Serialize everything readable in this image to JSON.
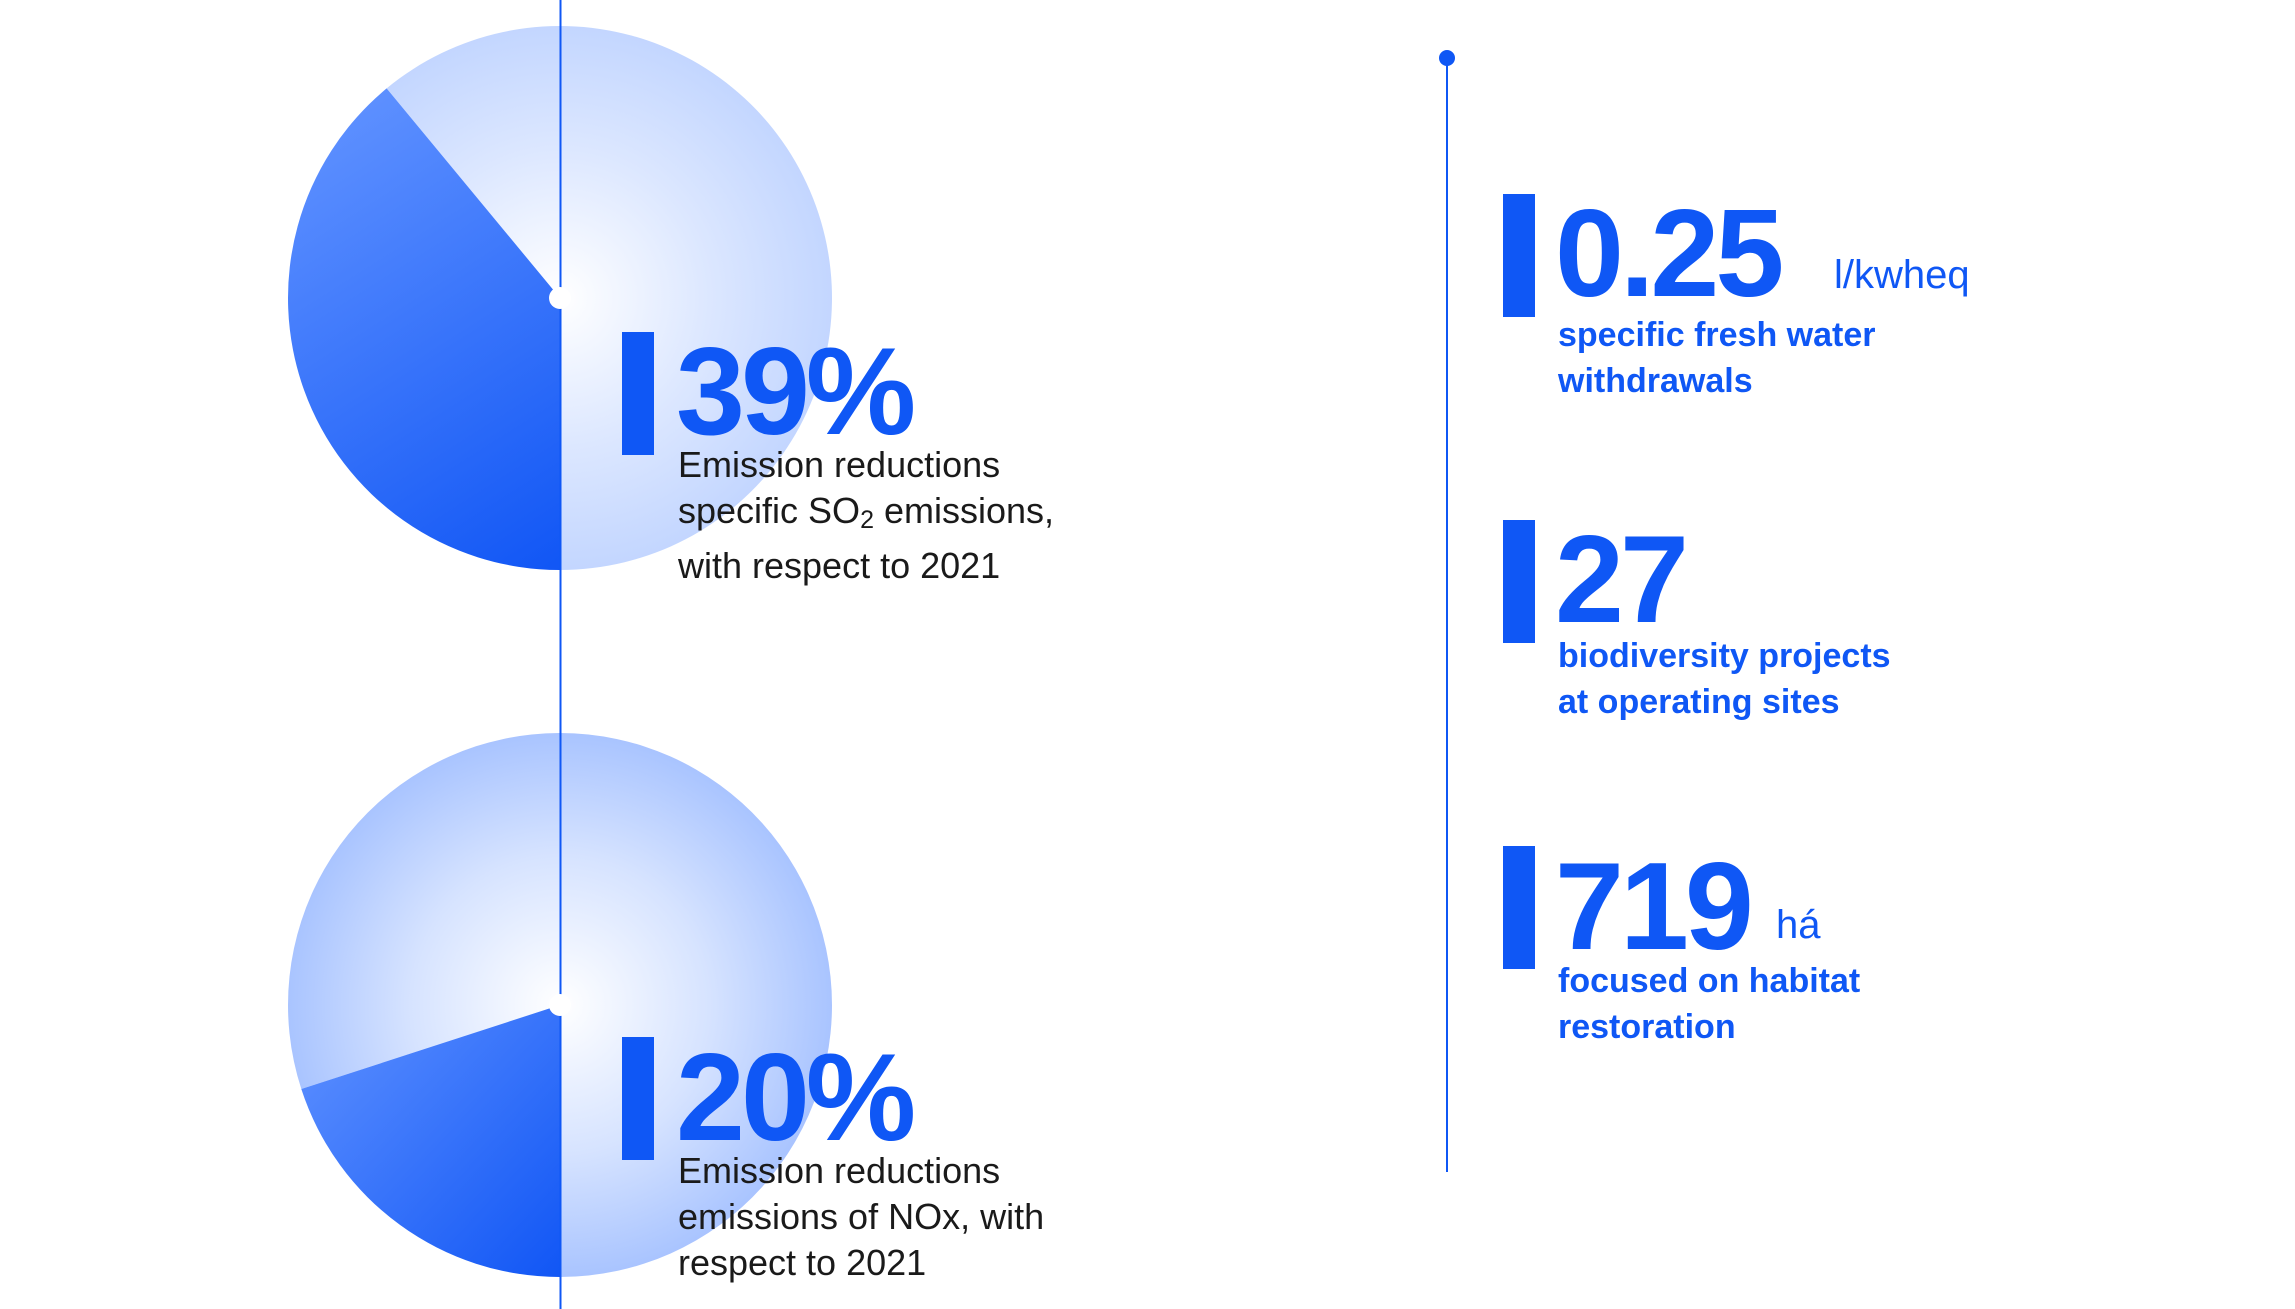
{
  "chart_data": [
    {
      "type": "pie",
      "title": "39%",
      "values": [
        39,
        61
      ],
      "highlight_value": 39,
      "highlight_unit": "%",
      "description_lines": [
        "Emission reductions",
        "specific SO",
        "2",
        " emissions,",
        "with respect to 2021"
      ],
      "colors": {
        "highlight": "#3D7BFF",
        "remainder": "#C9DAFF"
      }
    },
    {
      "type": "pie",
      "title": "20%",
      "values": [
        20,
        80
      ],
      "highlight_value": 20,
      "highlight_unit": "%",
      "description_lines": [
        "Emission reductions",
        "emissions of NOx, with",
        "respect to 2021"
      ],
      "colors": {
        "highlight": "#3D7BFF",
        "remainder": "#C9DAFF"
      }
    }
  ],
  "pie1": {
    "value_label": "39%",
    "desc_line1": "Emission reductions",
    "desc_line2_prefix": "specific SO",
    "desc_line2_sub": "2",
    "desc_line2_suffix": " emissions,",
    "desc_line3": "with respect to 2021"
  },
  "pie2": {
    "value_label": "20%",
    "desc_line1": "Emission reductions",
    "desc_line2": "emissions of NOx, with",
    "desc_line3": "respect to 2021"
  },
  "kpis": [
    {
      "value": "0.25",
      "unit": "l/kwheq",
      "line1": "specific fresh water",
      "line2": "withdrawals"
    },
    {
      "value": "27",
      "unit": "",
      "line1": "biodiversity projects",
      "line2": "at operating sites"
    },
    {
      "value": "719",
      "unit": "há",
      "line1": "focused on habitat",
      "line2": "restoration"
    }
  ],
  "colors": {
    "accent": "#0F57F5",
    "text": "#1a1a1a",
    "background": "#ffffff"
  }
}
